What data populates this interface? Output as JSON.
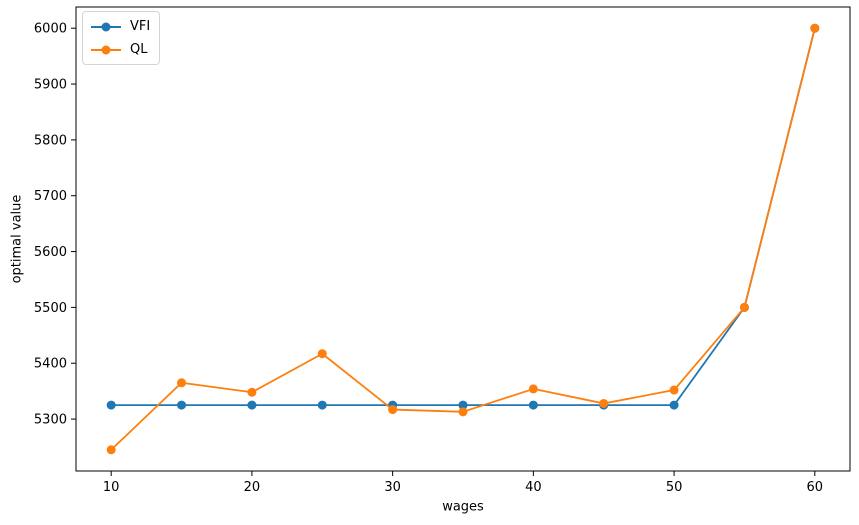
{
  "chart_data": {
    "type": "line",
    "x": [
      10,
      15,
      20,
      25,
      30,
      35,
      40,
      45,
      50,
      55,
      60
    ],
    "series": [
      {
        "name": "VFI",
        "color": "#1f77b4",
        "values": [
          5325,
          5325,
          5325,
          5325,
          5325,
          5325,
          5325,
          5325,
          5325,
          5500,
          6000
        ]
      },
      {
        "name": "QL",
        "color": "#ff7f0e",
        "values": [
          5245,
          5365,
          5348,
          5417,
          5317,
          5313,
          5354,
          5328,
          5352,
          5500,
          6000
        ]
      }
    ],
    "title": "",
    "xlabel": "wages",
    "ylabel": "optimal value",
    "xticks": [
      10,
      20,
      30,
      40,
      50,
      60
    ],
    "yticks": [
      5300,
      5400,
      5500,
      5600,
      5700,
      5800,
      5900,
      6000
    ],
    "xlim": [
      7.5,
      62.5
    ],
    "ylim": [
      5207,
      6038
    ],
    "grid": false,
    "legend_position": "upper left",
    "axis_color": "#000000",
    "marker": "circle",
    "background": "#ffffff"
  }
}
